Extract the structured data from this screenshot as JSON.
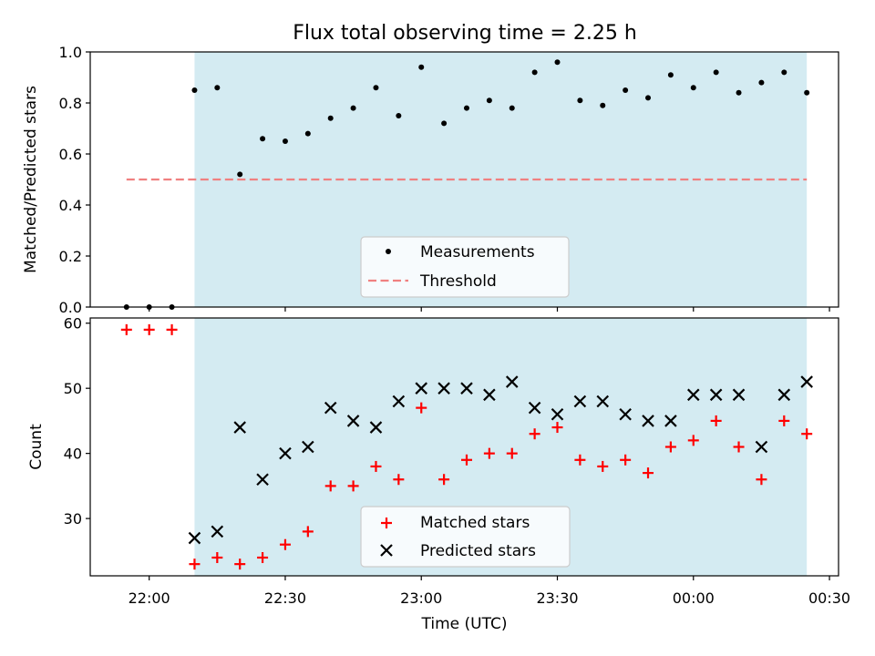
{
  "title": "Flux total observing time = 2.25 h",
  "chart_data": [
    {
      "type": "scatter",
      "panel": "top",
      "ylabel": "Matched/Predicted stars",
      "ylim": [
        0,
        1.0
      ],
      "yticks": [
        0.0,
        0.2,
        0.4,
        0.6,
        0.8,
        1.0
      ],
      "ytick_labels": [
        "0.0",
        "0.2",
        "0.4",
        "0.6",
        "0.8",
        "1.0"
      ],
      "x": [
        "21:55",
        "22:00",
        "22:05",
        "22:10",
        "22:15",
        "22:20",
        "22:25",
        "22:30",
        "22:35",
        "22:40",
        "22:45",
        "22:50",
        "22:55",
        "23:00",
        "23:05",
        "23:10",
        "23:15",
        "23:20",
        "23:25",
        "23:30",
        "23:35",
        "23:40",
        "23:45",
        "23:50",
        "23:55",
        "00:00",
        "00:05",
        "00:10",
        "00:15",
        "00:20",
        "00:25"
      ],
      "series": [
        {
          "name": "Measurements",
          "color": "#000000",
          "marker": "dot",
          "values": [
            0.0,
            0.0,
            0.0,
            0.85,
            0.86,
            0.52,
            0.66,
            0.65,
            0.68,
            0.74,
            0.78,
            0.86,
            0.75,
            0.94,
            0.72,
            0.78,
            0.81,
            0.78,
            0.92,
            0.96,
            0.81,
            0.79,
            0.85,
            0.82,
            0.91,
            0.86,
            0.92,
            0.84,
            0.88,
            0.92,
            0.84
          ]
        },
        {
          "name": "Threshold",
          "color": "#f08080",
          "style": "dashed",
          "x_range": [
            "21:55",
            "00:25"
          ],
          "value": 0.5
        }
      ],
      "shaded_region": {
        "color": "#add8e6",
        "x_range": [
          "22:10",
          "00:25"
        ]
      },
      "legend": {
        "placement": "lower center",
        "entries": [
          "Measurements",
          "Threshold"
        ]
      }
    },
    {
      "type": "scatter",
      "panel": "bottom",
      "xlabel": "Time (UTC)",
      "ylabel": "Count",
      "ylim": [
        21.2,
        60.8
      ],
      "yticks": [
        30,
        40,
        50,
        60
      ],
      "ytick_labels": [
        "30",
        "40",
        "50",
        "60"
      ],
      "xlim": [
        "21:47",
        "00:32"
      ],
      "xticks": [
        "22:00",
        "22:30",
        "23:00",
        "23:30",
        "00:00",
        "00:30"
      ],
      "x": [
        "21:55",
        "22:00",
        "22:05",
        "22:10",
        "22:15",
        "22:20",
        "22:25",
        "22:30",
        "22:35",
        "22:40",
        "22:45",
        "22:50",
        "22:55",
        "23:00",
        "23:05",
        "23:10",
        "23:15",
        "23:20",
        "23:25",
        "23:30",
        "23:35",
        "23:40",
        "23:45",
        "23:50",
        "23:55",
        "00:00",
        "00:05",
        "00:10",
        "00:15",
        "00:20",
        "00:25"
      ],
      "series": [
        {
          "name": "Matched stars",
          "color": "#ff0000",
          "marker": "plus",
          "values": [
            59,
            59,
            59,
            23,
            24,
            23,
            24,
            26,
            28,
            35,
            35,
            38,
            36,
            47,
            36,
            39,
            40,
            40,
            43,
            44,
            39,
            38,
            39,
            37,
            41,
            42,
            45,
            41,
            36,
            45,
            43
          ]
        },
        {
          "name": "Predicted stars",
          "color": "#000000",
          "marker": "x",
          "x_start_index": 3,
          "values": [
            27,
            28,
            44,
            36,
            40,
            41,
            47,
            45,
            44,
            48,
            50,
            50,
            50,
            49,
            51,
            47,
            46,
            48,
            48,
            46,
            45,
            45,
            49,
            49,
            49,
            41,
            49,
            51
          ]
        }
      ],
      "shaded_region": {
        "color": "#add8e6",
        "x_range": [
          "22:10",
          "00:25"
        ]
      },
      "legend": {
        "placement": "lower center",
        "entries": [
          "Matched stars",
          "Predicted stars"
        ]
      }
    }
  ]
}
